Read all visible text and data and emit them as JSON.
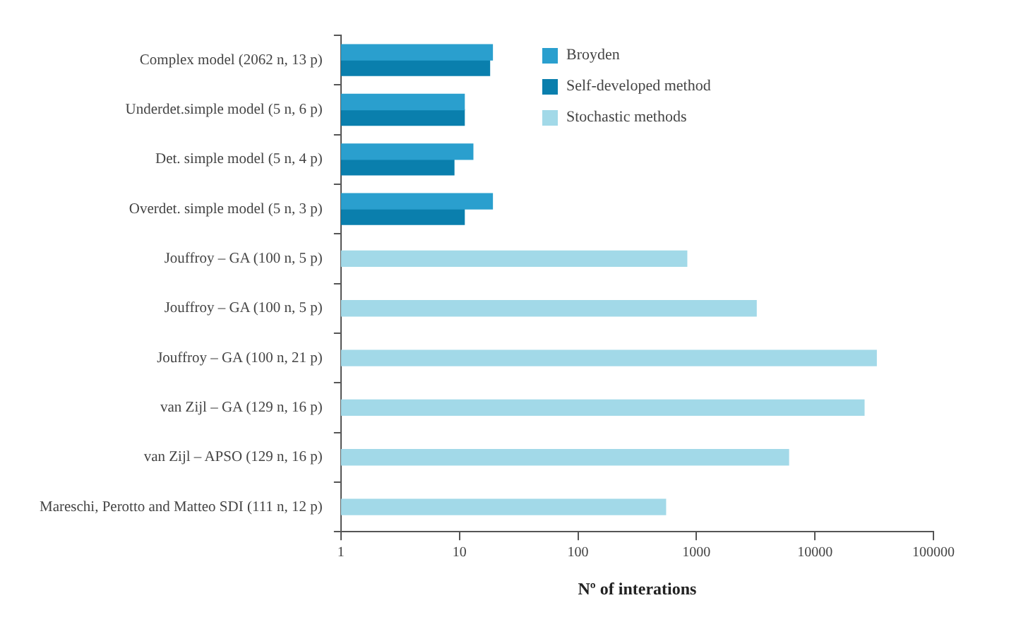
{
  "chart_data": {
    "type": "bar",
    "orientation": "horizontal",
    "log": "x",
    "xlabel": "Nº of interations",
    "categories": [
      "Complex model (2062 n, 13 p)",
      "Underdet.simple model (5 n, 6 p)",
      "Det. simple model (5 n, 4 p)",
      "Overdet. simple model (5 n, 3 p)",
      "Jouffroy – GA (100 n, 5 p)",
      "Jouffroy – GA (100 n, 5 p)",
      "Jouffroy – GA (100 n, 21 p)",
      "van Zijl – GA (129 n, 16 p)",
      "van Zijl – APSO (129 n, 16 p)",
      "Mareschi, Perotto and Matteo SDI (111 n, 12 p)"
    ],
    "series": [
      {
        "name": "Broyden",
        "color": "#2a9fce",
        "values": [
          19,
          11,
          13,
          19,
          null,
          null,
          null,
          null,
          null,
          null
        ]
      },
      {
        "name": "Self-developed method",
        "color": "#0a7fad",
        "values": [
          18,
          11,
          9,
          11,
          null,
          null,
          null,
          null,
          null,
          null
        ]
      },
      {
        "name": "Stochastic methods",
        "color": "#a2d9e8",
        "values": [
          null,
          null,
          null,
          null,
          830,
          3200,
          33000,
          26000,
          6000,
          550
        ]
      }
    ],
    "xlim": [
      1,
      100000
    ],
    "xticks": [
      1,
      10,
      100,
      1000,
      10000,
      100000
    ],
    "grid": false,
    "legend": "top right"
  }
}
